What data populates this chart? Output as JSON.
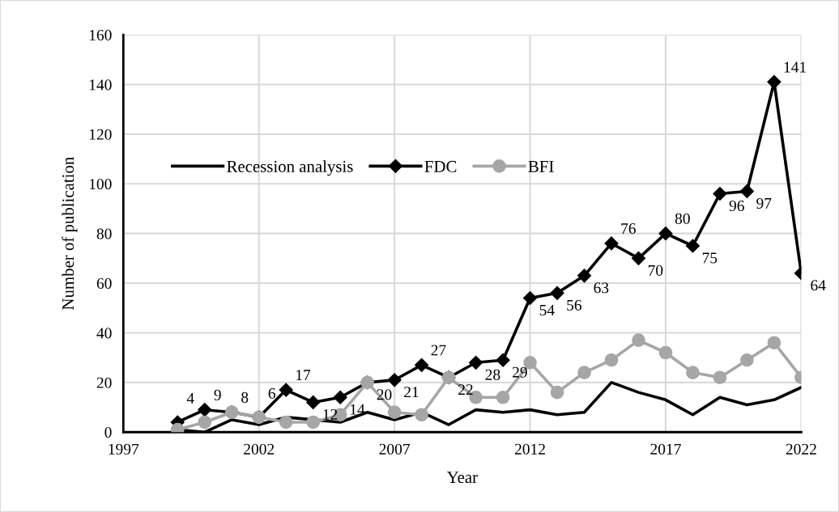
{
  "chart_data": {
    "type": "line",
    "xlabel": "Year",
    "ylabel": "Number of publication",
    "x": [
      1999,
      2000,
      2001,
      2002,
      2003,
      2004,
      2005,
      2006,
      2007,
      2008,
      2009,
      2010,
      2011,
      2012,
      2013,
      2014,
      2015,
      2016,
      2017,
      2018,
      2019,
      2020,
      2021,
      2022
    ],
    "series": [
      {
        "name": "Recession analysis",
        "color": "#000000",
        "marker": "none",
        "values": [
          1,
          0,
          5,
          3,
          6,
          5,
          4,
          8,
          5,
          8,
          3,
          9,
          8,
          9,
          7,
          8,
          20,
          16,
          13,
          7,
          14,
          11,
          13,
          18
        ]
      },
      {
        "name": "FDC",
        "color": "#000000",
        "marker": "diamond",
        "data_labels": true,
        "values": [
          4,
          9,
          8,
          6,
          17,
          12,
          14,
          20,
          21,
          27,
          22,
          28,
          29,
          54,
          56,
          63,
          76,
          70,
          80,
          75,
          96,
          97,
          141,
          64
        ]
      },
      {
        "name": "BFI",
        "color": "#a6a6a6",
        "marker": "circle",
        "values": [
          1,
          4,
          8,
          6,
          4,
          4,
          7,
          20,
          8,
          7,
          22,
          14,
          14,
          28,
          16,
          24,
          29,
          37,
          32,
          24,
          22,
          29,
          36,
          22
        ]
      }
    ],
    "xlim": [
      1997,
      2022
    ],
    "xticks": [
      1997,
      2002,
      2007,
      2012,
      2017,
      2022
    ],
    "ylim": [
      0,
      160
    ],
    "yticks": [
      0,
      20,
      40,
      60,
      80,
      100,
      120,
      140,
      160
    ],
    "grid": true,
    "legend": "left",
    "line_style": "solid"
  }
}
